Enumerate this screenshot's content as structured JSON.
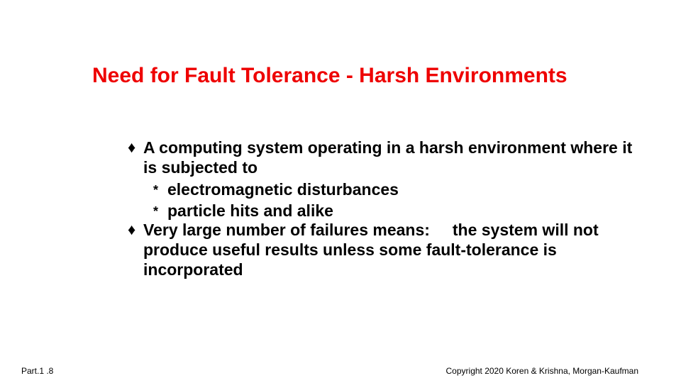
{
  "title": "Need for Fault Tolerance - Harsh Environments",
  "bullets": [
    {
      "marker": "♦",
      "text": "A computing system operating in a harsh environment where it is subjected to",
      "subs": [
        {
          "marker": "*",
          "text": "electromagnetic disturbances"
        },
        {
          "marker": "*",
          "text": "particle hits and alike"
        }
      ]
    },
    {
      "marker": "♦",
      "text": "Very large number of failures means:     the system will not produce useful results unless some fault-tolerance is incorporated",
      "subs": []
    }
  ],
  "footer": {
    "left": "Part.1 .8",
    "right": "Copyright 2020 Koren & Krishna, Morgan-Kaufman"
  },
  "colors": {
    "title": "#ee0000",
    "text": "#000000",
    "background": "#ffffff"
  }
}
